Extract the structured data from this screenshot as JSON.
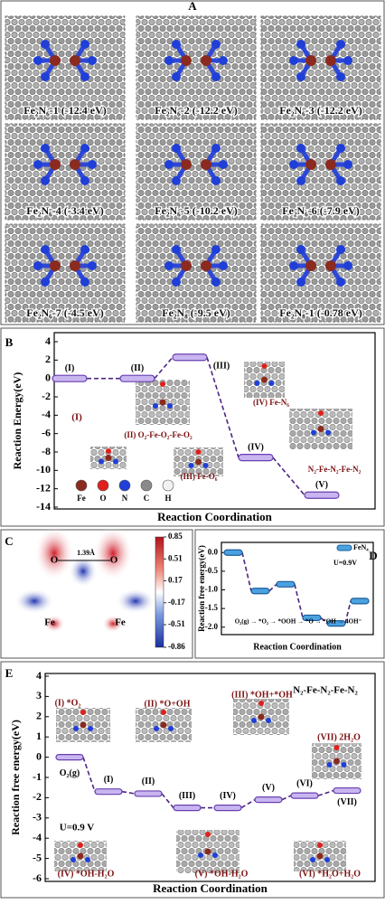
{
  "panel_labels": [
    "A",
    "B",
    "C",
    "D",
    "E"
  ],
  "structures": [
    {
      "label": "Fe₂N₆-1 (-12.4 eV)"
    },
    {
      "label": "Fe₂N₆-2 (-12.2 eV)"
    },
    {
      "label": "Fe₂N₆-3 (-12.2 eV)"
    },
    {
      "label": "Fe₂N₆-4 (-3.4 eV)"
    },
    {
      "label": "Fe₂N₆-5 (-10.2 eV)"
    },
    {
      "label": "Fe₂N₆-6 (-7.9 eV)"
    },
    {
      "label": "Fe₂N₆-7 (-4.5 eV)"
    },
    {
      "label": "Fe₂N₈ (-9.5 eV)"
    },
    {
      "label": "Fe₂N₈-1 (-0.78 eV)"
    }
  ],
  "charge_map": {
    "colorbar_ticks": [
      0.85,
      0.51,
      0.17,
      -0.17,
      -0.51,
      -0.86
    ],
    "labels": [
      "O",
      "1.39Å",
      "O",
      "Fe",
      "Fe"
    ]
  },
  "chart_data": [
    {
      "type": "level",
      "ylabel": "Reaction Energy(eV)",
      "xlabel": "Reaction Coordination",
      "categories": [
        "(I)",
        "(II)",
        "(III)",
        "(IV)",
        "(V)"
      ],
      "values": [
        0,
        0,
        2.3,
        -8.6,
        -12.7
      ],
      "color": "#c9b6f0",
      "ylim": [
        -14,
        4
      ],
      "yticks": [
        4,
        2,
        0,
        -2,
        -4,
        -6,
        -8,
        -10,
        -12,
        -14
      ],
      "annotations": [
        "(I)",
        "(II) O₂-Fe-O₂-Fe-O₂",
        "(III) Fe-O₆",
        "(IV) Fe-N₆",
        "N₂-Fe-N₂-Fe-N₂"
      ],
      "legend_atoms": [
        {
          "name": "Fe",
          "color": "#8b2a1e"
        },
        {
          "name": "O",
          "color": "#e0201b"
        },
        {
          "name": "N",
          "color": "#1f3fd8"
        },
        {
          "name": "C",
          "color": "#8a8a8a"
        },
        {
          "name": "H",
          "color": "#f2f2f2"
        }
      ]
    },
    {
      "type": "level",
      "ylabel": "Reaction free energy(eV)",
      "xlabel": "Reaction Coordination",
      "series": [
        {
          "name": "FeN₄",
          "color": "#4aa3e0",
          "values": [
            0,
            -1.03,
            -0.85,
            -1.75,
            -1.9,
            -1.3
          ]
        }
      ],
      "ylim": [
        -2.2,
        0.2
      ],
      "yticks": [
        {
          "value": 0,
          "label": "0.0"
        },
        -0.5,
        {
          "value": -1,
          "label": "-1.0"
        },
        -1.5,
        {
          "value": -2,
          "label": "-2.0"
        }
      ],
      "annotations": [
        "U=0.9V",
        "O₂(g) → *O₂ → *OOH → *O → *OH → 4OH⁻"
      ]
    },
    {
      "type": "level",
      "ylabel": "Reaction free energy(eV)",
      "xlabel": "Reaction Coordination",
      "categories": [
        "O₂(g)",
        "(I)",
        "(II)",
        "(III)",
        "(IV)",
        "(V)",
        "(VI)",
        "(VII)"
      ],
      "values": [
        0,
        -1.7,
        -1.8,
        -2.5,
        -2.5,
        -2.1,
        -1.9,
        -1.65
      ],
      "color": "#c9b6f0",
      "ylim": [
        -6,
        4
      ],
      "yticks": [
        4,
        3,
        2,
        1,
        0,
        -1,
        -2,
        -3,
        -4,
        -5,
        -6
      ],
      "annotations": [
        "N₂-Fe-N₂-Fe-N₂",
        "(I) *O₂",
        "(II) *O+OH",
        "(III) *OH+*OH",
        "(VII) 2H₂O",
        "U=0.9 V",
        "(IV) *OH-H₂O",
        "(V) *OH-H₂O",
        "(VI) *H₂O+H₂O"
      ]
    }
  ]
}
